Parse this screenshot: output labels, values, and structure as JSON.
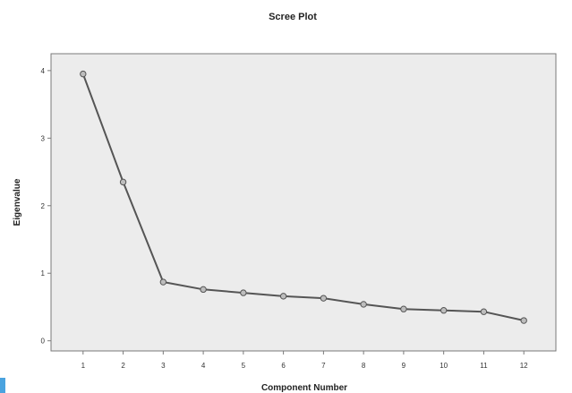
{
  "chart_data": {
    "type": "line",
    "title": "Scree Plot",
    "xlabel": "Component Number",
    "ylabel": "Eigenvalue",
    "x": [
      1,
      2,
      3,
      4,
      5,
      6,
      7,
      8,
      9,
      10,
      11,
      12
    ],
    "series": [
      {
        "values": [
          3.95,
          2.35,
          0.87,
          0.76,
          0.71,
          0.66,
          0.63,
          0.54,
          0.47,
          0.45,
          0.43,
          0.3
        ]
      }
    ],
    "xlim": [
      0.2,
      12.8
    ],
    "ylim": [
      -0.15,
      4.25
    ],
    "xticks": [
      "1",
      "2",
      "3",
      "4",
      "5",
      "6",
      "7",
      "8",
      "9",
      "10",
      "11",
      "12"
    ],
    "yticks": [
      "0",
      "1",
      "2",
      "3",
      "4"
    ],
    "grid": false,
    "colors": {
      "plot_background": "#ececec",
      "line": "#555555",
      "marker_fill": "#bdbdbd",
      "frame": "#7a7a7a"
    }
  }
}
